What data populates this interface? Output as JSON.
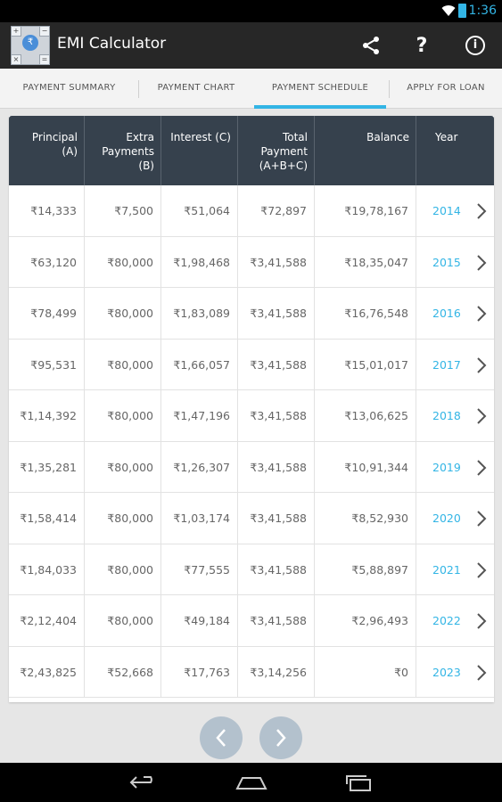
{
  "status_bar": {
    "time": "1:36",
    "accent": "#33b5e5"
  },
  "app": {
    "title": "EMI Calculator",
    "icon": "emi-calculator-app-icon"
  },
  "action_bar": {
    "icons": [
      "share-icon",
      "help-icon",
      "info-icon"
    ],
    "help_glyph": "?",
    "info_glyph": "i"
  },
  "tabs": [
    {
      "label": "PAYMENT SUMMARY"
    },
    {
      "label": "PAYMENT CHART"
    },
    {
      "label": "PAYMENT SCHEDULE",
      "active": true
    },
    {
      "label": "APPLY FOR LOAN"
    }
  ],
  "table": {
    "headers": {
      "principal_1": "Principal",
      "principal_2": "(A)",
      "extra_1": "Extra",
      "extra_2": "Payments",
      "extra_3": "(B)",
      "interest": "Interest (C)",
      "total_1": "Total",
      "total_2": "Payment",
      "total_3": "(A+B+C)",
      "balance": "Balance",
      "year": "Year"
    },
    "rows": [
      {
        "principal": "₹14,333",
        "extra": "₹7,500",
        "interest": "₹51,064",
        "total": "₹72,897",
        "balance": "₹19,78,167",
        "year": "2014"
      },
      {
        "principal": "₹63,120",
        "extra": "₹80,000",
        "interest": "₹1,98,468",
        "total": "₹3,41,588",
        "balance": "₹18,35,047",
        "year": "2015"
      },
      {
        "principal": "₹78,499",
        "extra": "₹80,000",
        "interest": "₹1,83,089",
        "total": "₹3,41,588",
        "balance": "₹16,76,548",
        "year": "2016"
      },
      {
        "principal": "₹95,531",
        "extra": "₹80,000",
        "interest": "₹1,66,057",
        "total": "₹3,41,588",
        "balance": "₹15,01,017",
        "year": "2017"
      },
      {
        "principal": "₹1,14,392",
        "extra": "₹80,000",
        "interest": "₹1,47,196",
        "total": "₹3,41,588",
        "balance": "₹13,06,625",
        "year": "2018"
      },
      {
        "principal": "₹1,35,281",
        "extra": "₹80,000",
        "interest": "₹1,26,307",
        "total": "₹3,41,588",
        "balance": "₹10,91,344",
        "year": "2019"
      },
      {
        "principal": "₹1,58,414",
        "extra": "₹80,000",
        "interest": "₹1,03,174",
        "total": "₹3,41,588",
        "balance": "₹8,52,930",
        "year": "2020"
      },
      {
        "principal": "₹1,84,033",
        "extra": "₹80,000",
        "interest": "₹77,555",
        "total": "₹3,41,588",
        "balance": "₹5,88,897",
        "year": "2021"
      },
      {
        "principal": "₹2,12,404",
        "extra": "₹80,000",
        "interest": "₹49,184",
        "total": "₹3,41,588",
        "balance": "₹2,96,493",
        "year": "2022"
      },
      {
        "principal": "₹2,43,825",
        "extra": "₹52,668",
        "interest": "₹17,763",
        "total": "₹3,14,256",
        "balance": "₹0",
        "year": "2023"
      }
    ]
  },
  "pager": {
    "prev_icon": "chevron-left-icon",
    "next_icon": "chevron-right-icon"
  },
  "nav_bar": {
    "icons": [
      "back-icon",
      "home-icon",
      "recent-apps-icon"
    ]
  },
  "colors": {
    "header_bg": "#36414d",
    "accent": "#33b5e5",
    "action_bar": "#272727",
    "pager_btn": "#b3c1cd"
  }
}
